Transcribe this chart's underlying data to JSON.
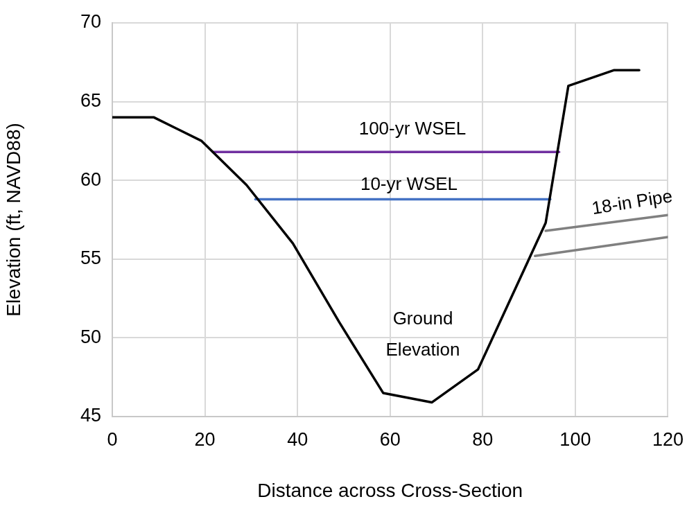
{
  "chart_data": {
    "type": "line",
    "xlabel": "Distance across Cross-Section",
    "ylabel": "Elevation (ft, NAVD88)",
    "xlim": [
      0,
      120
    ],
    "xticks": [
      0,
      20,
      40,
      60,
      80,
      100,
      120
    ],
    "ylim": [
      45,
      70
    ],
    "yticks": [
      45,
      50,
      55,
      60,
      65,
      70
    ],
    "grid": true,
    "legend": false,
    "marker": "none",
    "line_style": "solid",
    "series": [
      {
        "name": "Ground Elevation",
        "color": "#000000",
        "x": [
          0,
          9,
          19.3,
          29,
          39,
          49,
          58.5,
          69,
          79,
          93.6,
          98.5,
          108.4,
          113.8
        ],
        "values": [
          64,
          64,
          62.5,
          59.7,
          56,
          51,
          46.5,
          45.9,
          48,
          57.3,
          66,
          67,
          67
        ]
      },
      {
        "name": "100-yr WSEL",
        "color": "#7030a0",
        "x": [
          21.7,
          96.5
        ],
        "values": [
          61.8,
          61.8
        ]
      },
      {
        "name": "10-yr WSEL",
        "color": "#4472c4",
        "x": [
          30.9,
          94.6
        ],
        "values": [
          58.8,
          58.8
        ]
      },
      {
        "name": "18-in Pipe",
        "color": "#808080",
        "x": [
          93.6,
          120
        ],
        "values": [
          56.8,
          57.8
        ]
      },
      {
        "color": "#808080",
        "x": [
          91.3,
          120
        ],
        "values": [
          55.2,
          56.4
        ]
      }
    ]
  }
}
